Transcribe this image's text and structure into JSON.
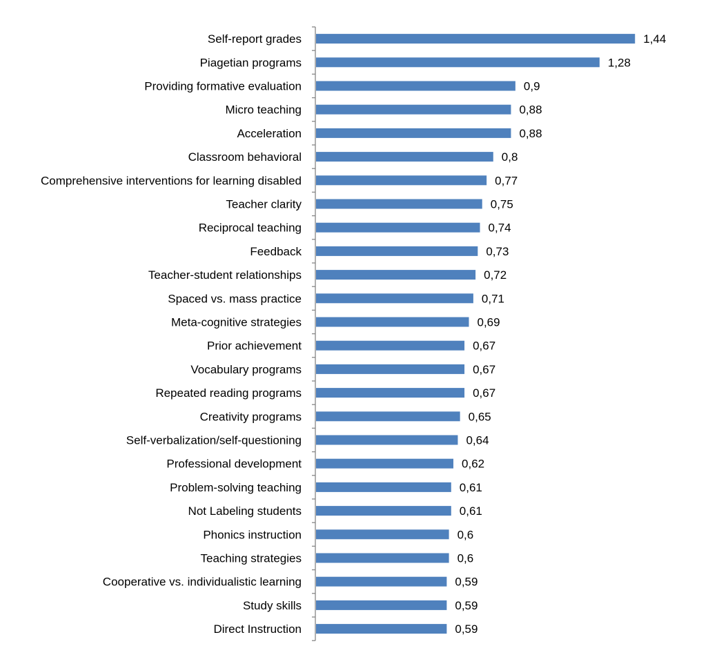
{
  "chart_data": {
    "type": "bar",
    "orientation": "horizontal",
    "title": "",
    "xlabel": "",
    "ylabel": "",
    "xlim": [
      0,
      1.44
    ],
    "grid": false,
    "legend": "none",
    "bar_color": "#4F81BD",
    "axis_color": "#868686",
    "categories": [
      "Self-report grades",
      "Piagetian programs",
      "Providing formative evaluation",
      "Micro teaching",
      "Acceleration",
      "Classroom behavioral",
      "Comprehensive interventions for learning disabled",
      "Teacher clarity",
      "Reciprocal teaching",
      "Feedback",
      "Teacher-student relationships",
      "Spaced vs. mass practice",
      "Meta-cognitive strategies",
      "Prior achievement",
      "Vocabulary programs",
      "Repeated reading programs",
      "Creativity programs",
      "Self-verbalization/self-questioning",
      "Professional development",
      "Problem-solving teaching",
      "Not Labeling students",
      "Phonics instruction",
      "Teaching strategies",
      "Cooperative vs. individualistic learning",
      "Study skills",
      "Direct Instruction"
    ],
    "values": [
      1.44,
      1.28,
      0.9,
      0.88,
      0.88,
      0.8,
      0.77,
      0.75,
      0.74,
      0.73,
      0.72,
      0.71,
      0.69,
      0.67,
      0.67,
      0.67,
      0.65,
      0.64,
      0.62,
      0.61,
      0.61,
      0.6,
      0.6,
      0.59,
      0.59,
      0.59
    ],
    "value_labels": [
      "1,44",
      "1,28",
      "0,9",
      "0,88",
      "0,88",
      "0,8",
      "0,77",
      "0,75",
      "0,74",
      "0,73",
      "0,72",
      "0,71",
      "0,69",
      "0,67",
      "0,67",
      "0,67",
      "0,65",
      "0,64",
      "0,62",
      "0,61",
      "0,61",
      "0,6",
      "0,6",
      "0,59",
      "0,59",
      "0,59"
    ]
  }
}
